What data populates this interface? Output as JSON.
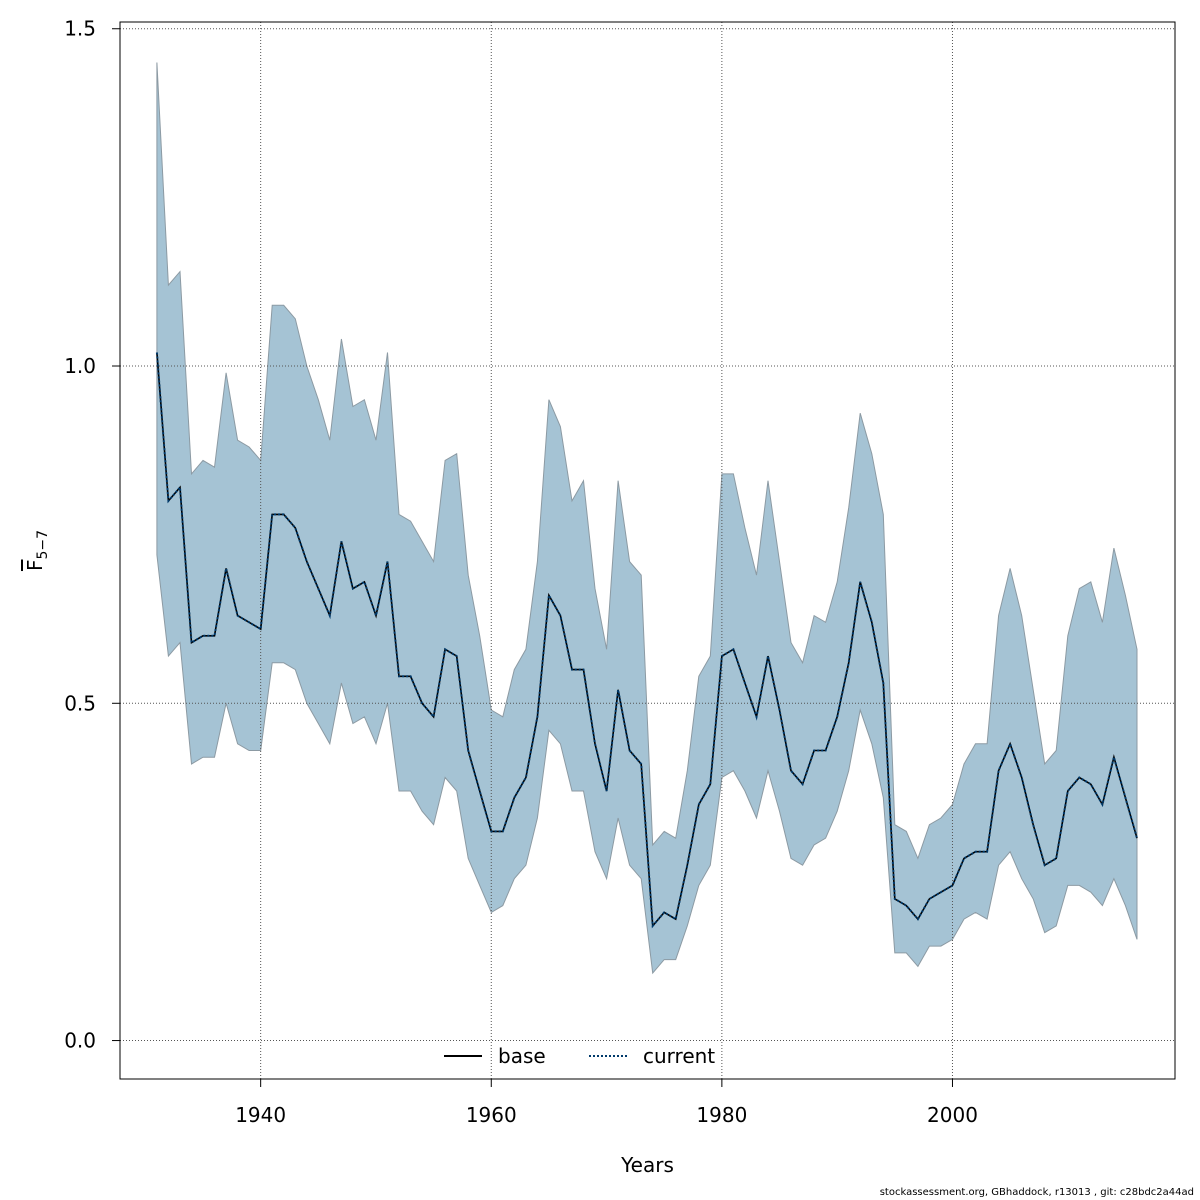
{
  "chart_data": {
    "type": "line",
    "xlabel": "Years",
    "ylabel": "F",
    "ylabel_subscript": "5−7",
    "xlim": [
      1927.8,
      2019.3
    ],
    "ylim": [
      -0.057,
      1.51
    ],
    "xticks": [
      "1940",
      "1960",
      "1980",
      "2000"
    ],
    "yticks": [
      "0.0",
      "0.5",
      "1.0",
      "1.5"
    ],
    "grid": true,
    "legend_position": "bottom-center",
    "band_color": "#a5c3d4",
    "band_edge_color": "#8c9aa3",
    "x": [
      1931,
      1932,
      1933,
      1934,
      1935,
      1936,
      1937,
      1938,
      1939,
      1940,
      1941,
      1942,
      1943,
      1944,
      1945,
      1946,
      1947,
      1948,
      1949,
      1950,
      1951,
      1952,
      1953,
      1954,
      1955,
      1956,
      1957,
      1958,
      1959,
      1960,
      1961,
      1962,
      1963,
      1964,
      1965,
      1966,
      1967,
      1968,
      1969,
      1970,
      1971,
      1972,
      1973,
      1974,
      1975,
      1976,
      1977,
      1978,
      1979,
      1980,
      1981,
      1982,
      1983,
      1984,
      1985,
      1986,
      1987,
      1988,
      1989,
      1990,
      1991,
      1992,
      1993,
      1994,
      1995,
      1996,
      1997,
      1998,
      1999,
      2000,
      2001,
      2002,
      2003,
      2004,
      2005,
      2006,
      2007,
      2008,
      2009,
      2010,
      2011,
      2012,
      2013,
      2014,
      2015,
      2016
    ],
    "series": [
      {
        "name": "base",
        "color": "#000000",
        "dash": "solid",
        "values": [
          1.02,
          0.8,
          0.82,
          0.59,
          0.6,
          0.6,
          0.7,
          0.63,
          0.62,
          0.61,
          0.78,
          0.78,
          0.76,
          0.71,
          0.67,
          0.63,
          0.74,
          0.67,
          0.68,
          0.63,
          0.71,
          0.54,
          0.54,
          0.5,
          0.48,
          0.58,
          0.57,
          0.43,
          0.37,
          0.31,
          0.31,
          0.36,
          0.39,
          0.48,
          0.66,
          0.63,
          0.55,
          0.55,
          0.44,
          0.37,
          0.52,
          0.43,
          0.41,
          0.17,
          0.19,
          0.18,
          0.26,
          0.35,
          0.38,
          0.57,
          0.58,
          0.53,
          0.48,
          0.57,
          0.49,
          0.4,
          0.38,
          0.43,
          0.43,
          0.48,
          0.56,
          0.68,
          0.62,
          0.53,
          0.21,
          0.2,
          0.18,
          0.21,
          0.22,
          0.23,
          0.27,
          0.28,
          0.28,
          0.4,
          0.44,
          0.39,
          0.32,
          0.26,
          0.27,
          0.37,
          0.39,
          0.38,
          0.35,
          0.42,
          0.36,
          0.3
        ]
      },
      {
        "name": "current",
        "color": "#003a6b",
        "dash": "dotted",
        "values": [
          1.02,
          0.8,
          0.82,
          0.59,
          0.6,
          0.6,
          0.7,
          0.63,
          0.62,
          0.61,
          0.78,
          0.78,
          0.76,
          0.71,
          0.67,
          0.63,
          0.74,
          0.67,
          0.68,
          0.63,
          0.71,
          0.54,
          0.54,
          0.5,
          0.48,
          0.58,
          0.57,
          0.43,
          0.37,
          0.31,
          0.31,
          0.36,
          0.39,
          0.48,
          0.66,
          0.63,
          0.55,
          0.55,
          0.44,
          0.37,
          0.52,
          0.43,
          0.41,
          0.17,
          0.19,
          0.18,
          0.26,
          0.35,
          0.38,
          0.57,
          0.58,
          0.53,
          0.48,
          0.57,
          0.49,
          0.4,
          0.38,
          0.43,
          0.43,
          0.48,
          0.56,
          0.68,
          0.62,
          0.53,
          0.21,
          0.2,
          0.18,
          0.21,
          0.22,
          0.23,
          0.27,
          0.28,
          0.28,
          0.4,
          0.44,
          0.39,
          0.32,
          0.26,
          0.27,
          0.37,
          0.39,
          0.38,
          0.35,
          0.42,
          0.36,
          0.3
        ]
      }
    ],
    "upper": [
      1.45,
      1.12,
      1.14,
      0.84,
      0.86,
      0.85,
      0.99,
      0.89,
      0.88,
      0.86,
      1.09,
      1.09,
      1.07,
      1.0,
      0.95,
      0.89,
      1.04,
      0.94,
      0.95,
      0.89,
      1.02,
      0.78,
      0.77,
      0.74,
      0.71,
      0.86,
      0.87,
      0.69,
      0.6,
      0.49,
      0.48,
      0.55,
      0.58,
      0.71,
      0.95,
      0.91,
      0.8,
      0.83,
      0.67,
      0.58,
      0.83,
      0.71,
      0.69,
      0.29,
      0.31,
      0.3,
      0.4,
      0.54,
      0.57,
      0.84,
      0.84,
      0.76,
      0.69,
      0.83,
      0.71,
      0.59,
      0.56,
      0.63,
      0.62,
      0.68,
      0.79,
      0.93,
      0.87,
      0.78,
      0.32,
      0.31,
      0.27,
      0.32,
      0.33,
      0.35,
      0.41,
      0.44,
      0.44,
      0.63,
      0.7,
      0.63,
      0.52,
      0.41,
      0.43,
      0.6,
      0.67,
      0.68,
      0.62,
      0.73,
      0.66,
      0.58
    ],
    "lower": [
      0.72,
      0.57,
      0.59,
      0.41,
      0.42,
      0.42,
      0.5,
      0.44,
      0.43,
      0.43,
      0.56,
      0.56,
      0.55,
      0.5,
      0.47,
      0.44,
      0.53,
      0.47,
      0.48,
      0.44,
      0.5,
      0.37,
      0.37,
      0.34,
      0.32,
      0.39,
      0.37,
      0.27,
      0.23,
      0.19,
      0.2,
      0.24,
      0.26,
      0.33,
      0.46,
      0.44,
      0.37,
      0.37,
      0.28,
      0.24,
      0.33,
      0.26,
      0.24,
      0.1,
      0.12,
      0.12,
      0.17,
      0.23,
      0.26,
      0.39,
      0.4,
      0.37,
      0.33,
      0.4,
      0.34,
      0.27,
      0.26,
      0.29,
      0.3,
      0.34,
      0.4,
      0.49,
      0.44,
      0.36,
      0.13,
      0.13,
      0.11,
      0.14,
      0.14,
      0.15,
      0.18,
      0.19,
      0.18,
      0.26,
      0.28,
      0.24,
      0.21,
      0.16,
      0.17,
      0.23,
      0.23,
      0.22,
      0.2,
      0.24,
      0.2,
      0.15
    ]
  },
  "footer": {
    "credit": "stockassessment.org, GBhaddock, r13013 , git: c28bdc2a44ad"
  }
}
